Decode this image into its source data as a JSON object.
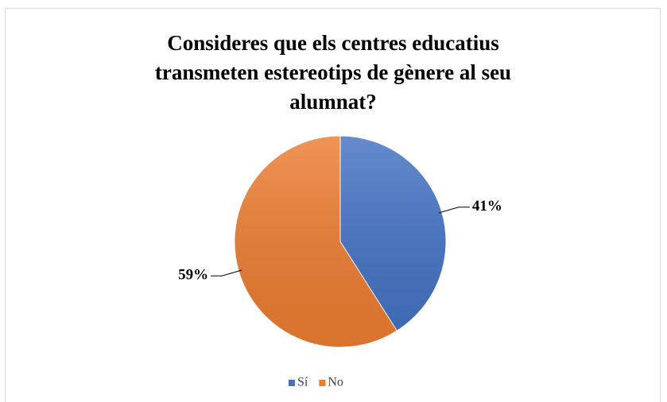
{
  "chart_data": {
    "type": "pie",
    "title": "Consideres que els centres educatius transmeten estereotips de gènere al seu alumnat?",
    "categories": [
      "Sí",
      "No"
    ],
    "values": [
      41,
      59
    ],
    "value_labels": [
      "41%",
      "59%"
    ],
    "colors": [
      "#4472c4",
      "#ed7d31"
    ],
    "legend": "bottom"
  }
}
